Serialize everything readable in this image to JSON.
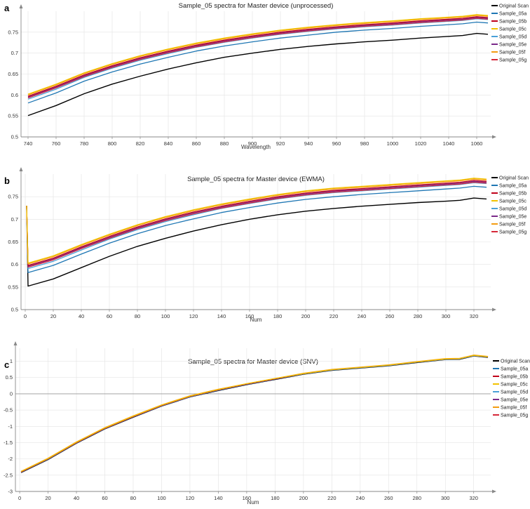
{
  "legend": [
    "Original Scan",
    "Sample_05a",
    "Sample_05b",
    "Sample_05c",
    "Sample_05d",
    "Sample_05e",
    "Sample_05f",
    "Sample_05g"
  ],
  "colors": {
    "Original Scan": "#000000",
    "Sample_05a": "#1f77b4",
    "Sample_05b": "#c0001a",
    "Sample_05c": "#f2c200",
    "Sample_05d": "#4aa0d8",
    "Sample_05e": "#7b2a8a",
    "Sample_05f": "#f39c12",
    "Sample_05g": "#d62839"
  },
  "chart_data": [
    {
      "panel": "a",
      "type": "line",
      "title": "Sample_05 spectra for Master device (unprocessed)",
      "xlabel": "Wavelength",
      "ylabel": "",
      "xlim": [
        735,
        1070
      ],
      "ylim": [
        0.5,
        0.8
      ],
      "xticks": [
        740,
        760,
        780,
        800,
        820,
        840,
        860,
        880,
        900,
        920,
        940,
        960,
        980,
        1000,
        1020,
        1040,
        1060
      ],
      "yticks": [
        0.5,
        0.55,
        0.6,
        0.65,
        0.7,
        0.75
      ],
      "ytick_labels": [
        "0.5",
        "0.55",
        "0.6",
        "0.65",
        "0.7",
        "0.75"
      ],
      "grid": true,
      "legend_position": "right",
      "x": [
        740,
        760,
        780,
        800,
        820,
        840,
        860,
        880,
        900,
        920,
        940,
        960,
        980,
        1000,
        1020,
        1040,
        1050,
        1060,
        1068
      ],
      "series": [
        {
          "name": "Original Scan",
          "values": [
            0.551,
            0.575,
            0.603,
            0.626,
            0.645,
            0.662,
            0.677,
            0.69,
            0.7,
            0.709,
            0.716,
            0.722,
            0.727,
            0.731,
            0.736,
            0.74,
            0.742,
            0.747,
            0.745
          ]
        },
        {
          "name": "Sample_05a",
          "values": [
            0.581,
            0.605,
            0.633,
            0.655,
            0.674,
            0.69,
            0.705,
            0.717,
            0.727,
            0.736,
            0.743,
            0.75,
            0.755,
            0.759,
            0.764,
            0.768,
            0.77,
            0.774,
            0.772
          ]
        },
        {
          "name": "Sample_05b",
          "values": [
            0.597,
            0.621,
            0.648,
            0.67,
            0.689,
            0.705,
            0.719,
            0.731,
            0.741,
            0.75,
            0.757,
            0.763,
            0.768,
            0.772,
            0.777,
            0.781,
            0.783,
            0.787,
            0.785
          ]
        },
        {
          "name": "Sample_05c",
          "values": [
            0.602,
            0.626,
            0.653,
            0.675,
            0.694,
            0.71,
            0.724,
            0.736,
            0.746,
            0.755,
            0.762,
            0.768,
            0.773,
            0.777,
            0.782,
            0.786,
            0.788,
            0.792,
            0.79
          ]
        },
        {
          "name": "Sample_05d",
          "values": [
            0.59,
            0.614,
            0.642,
            0.664,
            0.683,
            0.699,
            0.714,
            0.726,
            0.736,
            0.745,
            0.752,
            0.758,
            0.763,
            0.767,
            0.772,
            0.776,
            0.778,
            0.782,
            0.78
          ]
        },
        {
          "name": "Sample_05e",
          "values": [
            0.595,
            0.619,
            0.646,
            0.668,
            0.687,
            0.703,
            0.717,
            0.729,
            0.739,
            0.748,
            0.755,
            0.761,
            0.766,
            0.77,
            0.775,
            0.779,
            0.781,
            0.785,
            0.783
          ]
        },
        {
          "name": "Sample_05f",
          "values": [
            0.6,
            0.624,
            0.651,
            0.673,
            0.692,
            0.708,
            0.722,
            0.734,
            0.744,
            0.753,
            0.76,
            0.766,
            0.771,
            0.775,
            0.78,
            0.784,
            0.786,
            0.79,
            0.788
          ]
        },
        {
          "name": "Sample_05g",
          "values": [
            0.593,
            0.617,
            0.644,
            0.666,
            0.685,
            0.701,
            0.715,
            0.727,
            0.737,
            0.746,
            0.753,
            0.759,
            0.764,
            0.768,
            0.773,
            0.777,
            0.779,
            0.783,
            0.781
          ]
        }
      ]
    },
    {
      "panel": "b",
      "type": "line",
      "title": "Sample_05 spectra for Master device (EWMA)",
      "xlabel": "Num",
      "ylabel": "",
      "xlim": [
        -3,
        332
      ],
      "ylim": [
        0.5,
        0.8
      ],
      "xticks": [
        0,
        20,
        40,
        60,
        80,
        100,
        120,
        140,
        160,
        180,
        200,
        220,
        240,
        260,
        280,
        300,
        320
      ],
      "yticks": [
        0.5,
        0.55,
        0.6,
        0.65,
        0.7,
        0.75
      ],
      "ytick_labels": [
        "0.5",
        "0.55",
        "0.6",
        "0.65",
        "0.7",
        "0.75"
      ],
      "grid": true,
      "legend_position": "right",
      "x": [
        1,
        2,
        20,
        40,
        60,
        80,
        100,
        120,
        140,
        160,
        180,
        200,
        220,
        240,
        260,
        280,
        300,
        310,
        320,
        329
      ],
      "series": [
        {
          "name": "Original Scan",
          "values": [
            0.73,
            0.552,
            0.568,
            0.593,
            0.618,
            0.64,
            0.658,
            0.674,
            0.688,
            0.7,
            0.71,
            0.718,
            0.724,
            0.729,
            0.733,
            0.737,
            0.74,
            0.742,
            0.747,
            0.745
          ]
        },
        {
          "name": "Sample_05a",
          "values": [
            0.73,
            0.582,
            0.598,
            0.623,
            0.647,
            0.668,
            0.686,
            0.701,
            0.715,
            0.726,
            0.736,
            0.744,
            0.75,
            0.755,
            0.759,
            0.763,
            0.767,
            0.769,
            0.773,
            0.771
          ]
        },
        {
          "name": "Sample_05b",
          "values": [
            0.73,
            0.598,
            0.614,
            0.639,
            0.662,
            0.683,
            0.701,
            0.716,
            0.729,
            0.74,
            0.75,
            0.758,
            0.764,
            0.768,
            0.772,
            0.776,
            0.78,
            0.782,
            0.786,
            0.784
          ]
        },
        {
          "name": "Sample_05c",
          "values": [
            0.73,
            0.603,
            0.619,
            0.644,
            0.667,
            0.688,
            0.706,
            0.721,
            0.734,
            0.745,
            0.755,
            0.763,
            0.769,
            0.773,
            0.777,
            0.781,
            0.785,
            0.787,
            0.791,
            0.789
          ]
        },
        {
          "name": "Sample_05d",
          "values": [
            0.73,
            0.591,
            0.607,
            0.632,
            0.656,
            0.677,
            0.695,
            0.71,
            0.724,
            0.735,
            0.745,
            0.753,
            0.759,
            0.763,
            0.767,
            0.771,
            0.775,
            0.777,
            0.781,
            0.779
          ]
        },
        {
          "name": "Sample_05e",
          "values": [
            0.73,
            0.596,
            0.612,
            0.637,
            0.66,
            0.681,
            0.699,
            0.714,
            0.727,
            0.738,
            0.748,
            0.756,
            0.762,
            0.766,
            0.77,
            0.774,
            0.778,
            0.78,
            0.784,
            0.782
          ]
        },
        {
          "name": "Sample_05f",
          "values": [
            0.73,
            0.601,
            0.617,
            0.642,
            0.665,
            0.686,
            0.704,
            0.719,
            0.732,
            0.743,
            0.753,
            0.761,
            0.767,
            0.771,
            0.775,
            0.779,
            0.783,
            0.785,
            0.789,
            0.787
          ]
        },
        {
          "name": "Sample_05g",
          "values": [
            0.73,
            0.594,
            0.61,
            0.635,
            0.658,
            0.679,
            0.697,
            0.712,
            0.725,
            0.736,
            0.746,
            0.754,
            0.76,
            0.764,
            0.768,
            0.772,
            0.776,
            0.778,
            0.782,
            0.78
          ]
        }
      ]
    },
    {
      "panel": "c",
      "type": "line",
      "title": "Sample_05 spectra for Master device (SNV)",
      "xlabel": "Num",
      "ylabel": "",
      "xlim": [
        -3,
        332
      ],
      "ylim": [
        -3,
        1.4
      ],
      "xticks": [
        0,
        20,
        40,
        60,
        80,
        100,
        120,
        140,
        160,
        180,
        200,
        220,
        240,
        260,
        280,
        300,
        320
      ],
      "yticks": [
        -3,
        -2.5,
        -2,
        -1.5,
        -1,
        -0.5,
        0,
        0.5,
        1
      ],
      "ytick_labels": [
        "-3",
        "-2.5",
        "-2",
        "-1.5",
        "-1",
        "-0.5",
        "0",
        "0.5",
        "1"
      ],
      "grid": true,
      "legend_position": "right",
      "x": [
        1,
        20,
        40,
        60,
        80,
        100,
        120,
        140,
        160,
        180,
        200,
        220,
        240,
        260,
        280,
        300,
        310,
        320,
        330
      ],
      "series": [
        {
          "name": "Original Scan",
          "values": [
            -2.42,
            -2.02,
            -1.52,
            -1.08,
            -0.72,
            -0.38,
            -0.1,
            0.1,
            0.28,
            0.44,
            0.6,
            0.72,
            0.79,
            0.86,
            0.96,
            1.05,
            1.06,
            1.16,
            1.12
          ]
        },
        {
          "name": "Sample_05a",
          "values": [
            -2.41,
            -2.01,
            -1.51,
            -1.07,
            -0.71,
            -0.37,
            -0.09,
            0.11,
            0.29,
            0.45,
            0.61,
            0.73,
            0.8,
            0.87,
            0.97,
            1.06,
            1.07,
            1.17,
            1.13
          ]
        },
        {
          "name": "Sample_05b",
          "values": [
            -2.4,
            -2.0,
            -1.5,
            -1.06,
            -0.7,
            -0.36,
            -0.08,
            0.12,
            0.3,
            0.46,
            0.62,
            0.74,
            0.81,
            0.88,
            0.98,
            1.07,
            1.08,
            1.18,
            1.14
          ]
        },
        {
          "name": "Sample_05c",
          "values": [
            -2.39,
            -1.99,
            -1.49,
            -1.05,
            -0.69,
            -0.35,
            -0.07,
            0.13,
            0.31,
            0.47,
            0.62,
            0.74,
            0.81,
            0.88,
            0.98,
            1.07,
            1.08,
            1.18,
            1.14
          ]
        },
        {
          "name": "Sample_05d",
          "values": [
            -2.41,
            -2.01,
            -1.51,
            -1.07,
            -0.71,
            -0.37,
            -0.09,
            0.11,
            0.29,
            0.45,
            0.61,
            0.73,
            0.8,
            0.87,
            0.97,
            1.06,
            1.07,
            1.17,
            1.13
          ]
        },
        {
          "name": "Sample_05e",
          "values": [
            -2.4,
            -2.0,
            -1.5,
            -1.06,
            -0.7,
            -0.36,
            -0.08,
            0.12,
            0.3,
            0.46,
            0.62,
            0.74,
            0.81,
            0.88,
            0.98,
            1.07,
            1.08,
            1.18,
            1.14
          ]
        },
        {
          "name": "Sample_05f",
          "values": [
            -2.38,
            -1.98,
            -1.48,
            -1.04,
            -0.68,
            -0.34,
            -0.06,
            0.14,
            0.31,
            0.47,
            0.63,
            0.75,
            0.82,
            0.89,
            0.99,
            1.08,
            1.09,
            1.19,
            1.15
          ]
        },
        {
          "name": "Sample_05g",
          "values": [
            -2.4,
            -2.0,
            -1.5,
            -1.06,
            -0.7,
            -0.36,
            -0.08,
            0.12,
            0.3,
            0.46,
            0.62,
            0.74,
            0.81,
            0.88,
            0.98,
            1.07,
            1.08,
            1.18,
            1.14
          ]
        }
      ]
    }
  ]
}
